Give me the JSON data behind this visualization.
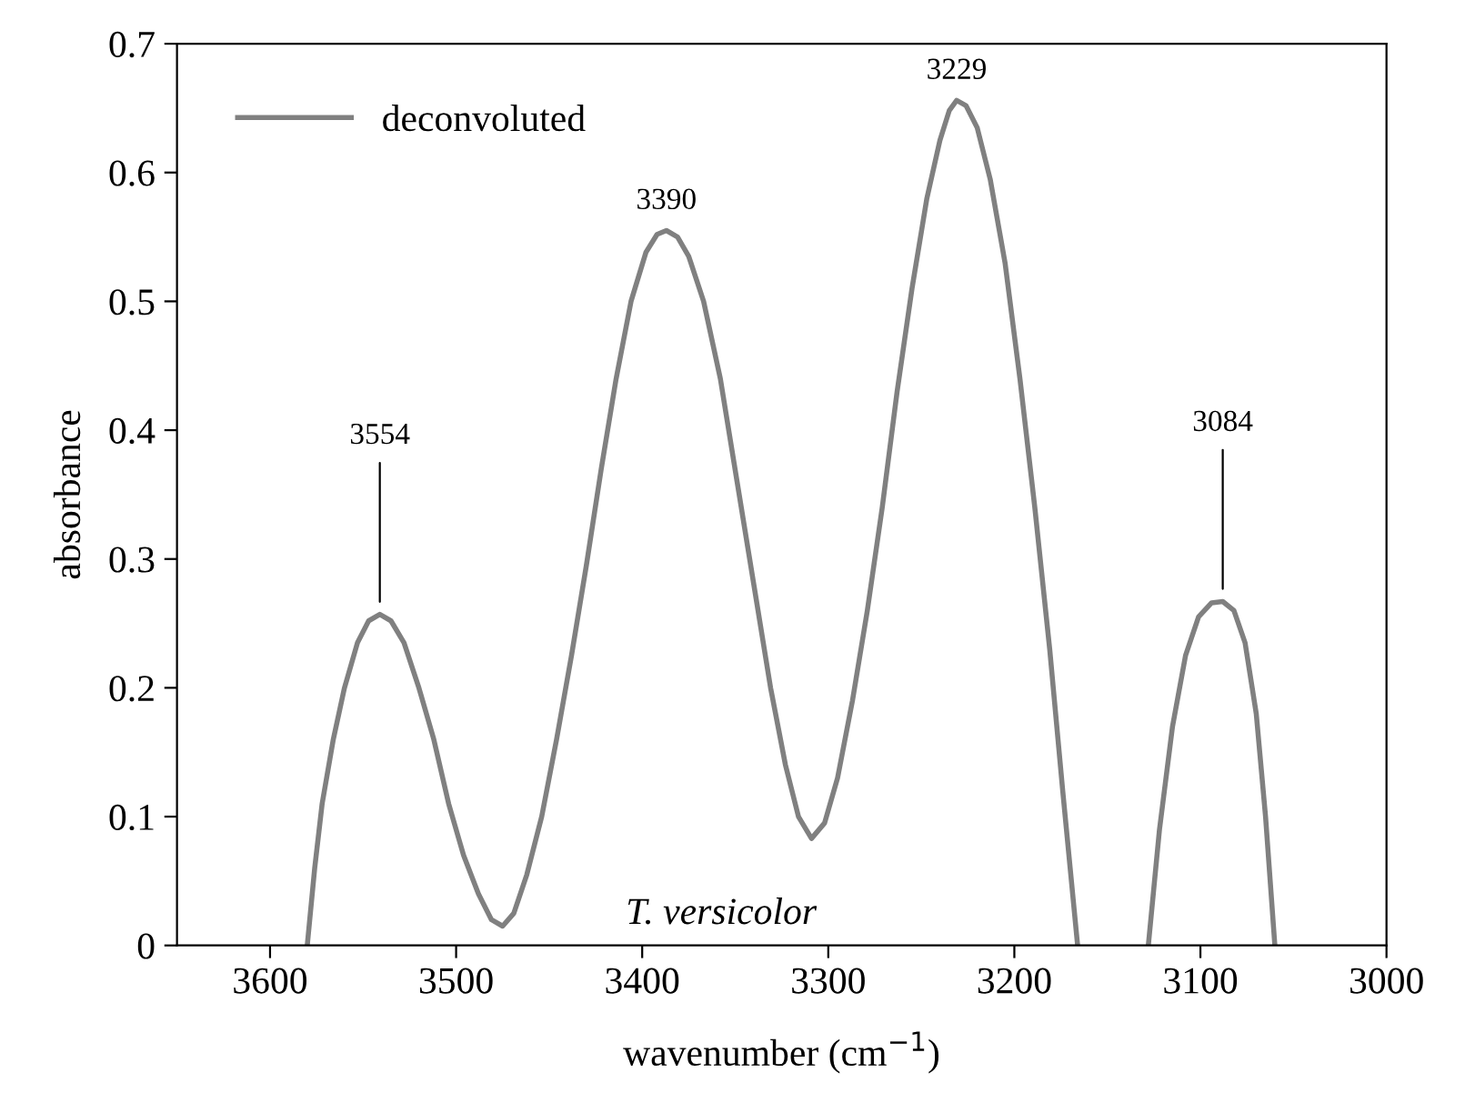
{
  "chart_data": {
    "type": "line",
    "xlabel": "wavenumber (cm$^{−1}$)",
    "ylabel": "absorbance",
    "x": [
      3580,
      3576,
      3572,
      3566,
      3560,
      3553,
      3547,
      3541,
      3535,
      3528,
      3520,
      3512,
      3504,
      3496,
      3488,
      3481,
      3475,
      3469,
      3462,
      3454,
      3446,
      3438,
      3430,
      3422,
      3414,
      3406,
      3398,
      3392,
      3387,
      3381,
      3375,
      3367,
      3358,
      3349,
      3340,
      3331,
      3323,
      3316,
      3309,
      3302,
      3295,
      3287,
      3279,
      3271,
      3263,
      3255,
      3247,
      3240,
      3235,
      3231,
      3226,
      3220,
      3213,
      3205,
      3197,
      3189,
      3181,
      3174,
      3166,
      3150,
      3128,
      3122,
      3115,
      3108,
      3101,
      3094,
      3088,
      3082,
      3076,
      3070,
      3065,
      3060
    ],
    "series": [
      {
        "name": "deconvoluted",
        "color": "#808080",
        "values": [
          0,
          0.06,
          0.11,
          0.16,
          0.2,
          0.235,
          0.252,
          0.257,
          0.252,
          0.235,
          0.2,
          0.16,
          0.11,
          0.07,
          0.04,
          0.02,
          0.015,
          0.025,
          0.055,
          0.1,
          0.16,
          0.225,
          0.295,
          0.37,
          0.44,
          0.5,
          0.538,
          0.552,
          0.555,
          0.55,
          0.535,
          0.5,
          0.44,
          0.36,
          0.28,
          0.2,
          0.14,
          0.1,
          0.083,
          0.095,
          0.13,
          0.19,
          0.26,
          0.34,
          0.43,
          0.51,
          0.58,
          0.625,
          0.648,
          0.656,
          0.652,
          0.635,
          0.595,
          0.53,
          0.44,
          0.34,
          0.23,
          0.12,
          0,
          null,
          0,
          0.09,
          0.17,
          0.225,
          0.255,
          0.266,
          0.267,
          0.26,
          0.235,
          0.18,
          0.1,
          0
        ]
      }
    ],
    "xlim": [
      3650,
      3000
    ],
    "xticks": [
      3600,
      3500,
      3400,
      3300,
      3200,
      3100,
      3000
    ],
    "ylim": [
      0,
      0.7
    ],
    "yticks": [
      0,
      0.1,
      0.2,
      0.3,
      0.4,
      0.5,
      0.6,
      0.7
    ],
    "annotations": [
      {
        "text": "3554",
        "x": 3541,
        "y": 0.257
      },
      {
        "text": "3390",
        "x": 3387,
        "y": 0.555
      },
      {
        "text": "3229",
        "x": 3231,
        "y": 0.656
      },
      {
        "text": "3084",
        "x": 3088,
        "y": 0.267
      },
      "T. versicolor"
    ],
    "legend": "top left",
    "grid": false,
    "marker": "none",
    "line_style": "solid"
  }
}
